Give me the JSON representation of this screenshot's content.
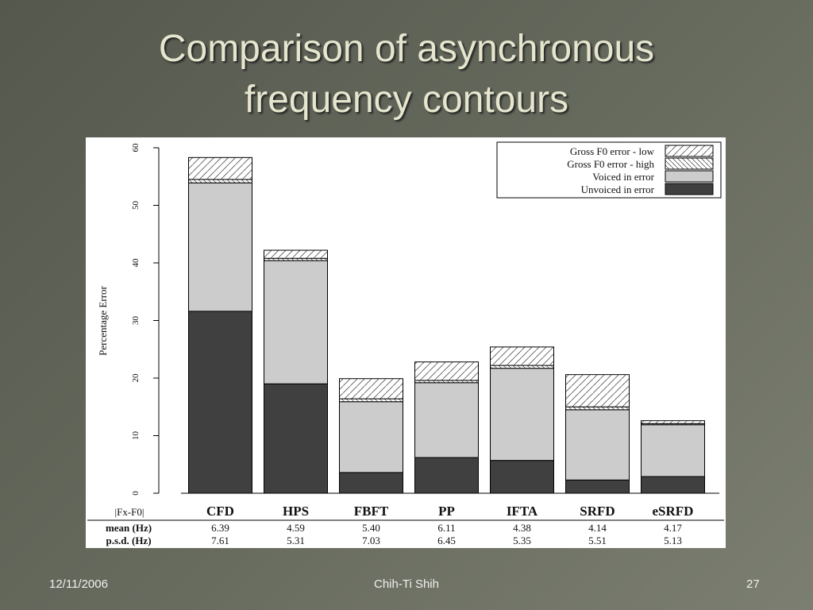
{
  "slide": {
    "title": "Comparison of asynchronous frequency contours",
    "date": "12/11/2006",
    "author": "Chih-Ti Shih",
    "page": "27"
  },
  "chart_data": {
    "type": "stacked_bar",
    "y_label": "Percentage Error",
    "categories": [
      "CFD",
      "HPS",
      "FBFT",
      "PP",
      "IFTA",
      "SRFD",
      "eSRFD"
    ],
    "series": [
      {
        "name": "Unvoiced in error",
        "color": "#404040",
        "values": [
          31.6,
          19.0,
          3.6,
          6.2,
          5.7,
          2.3,
          2.9
        ]
      },
      {
        "name": "Voiced in error",
        "color": "#cccccc",
        "values": [
          22.3,
          21.4,
          12.3,
          13.0,
          16.0,
          12.2,
          9.0
        ]
      },
      {
        "name": "Gross F0 error - high",
        "color": "#ffffff",
        "hatch": "backslash",
        "values": [
          0.6,
          0.4,
          0.5,
          0.4,
          0.5,
          0.5,
          0.2
        ]
      },
      {
        "name": "Gross F0 error - low",
        "color": "#ffffff",
        "hatch": "slash",
        "values": [
          3.8,
          1.4,
          3.5,
          3.2,
          3.2,
          5.6,
          0.5
        ]
      }
    ],
    "ylim": [
      0,
      60
    ],
    "yticks": [
      0,
      10,
      20,
      30,
      40,
      50,
      60
    ],
    "legend": "upper right",
    "table": {
      "header": "|Fx-F0|",
      "rows": [
        {
          "label": "mean (Hz)",
          "values": [
            "6.39",
            "4.59",
            "5.40",
            "6.11",
            "4.38",
            "4.14",
            "4.17"
          ]
        },
        {
          "label": "p.s.d. (Hz)",
          "values": [
            "7.61",
            "5.31",
            "7.03",
            "6.45",
            "5.35",
            "5.51",
            "5.13"
          ]
        }
      ]
    }
  }
}
